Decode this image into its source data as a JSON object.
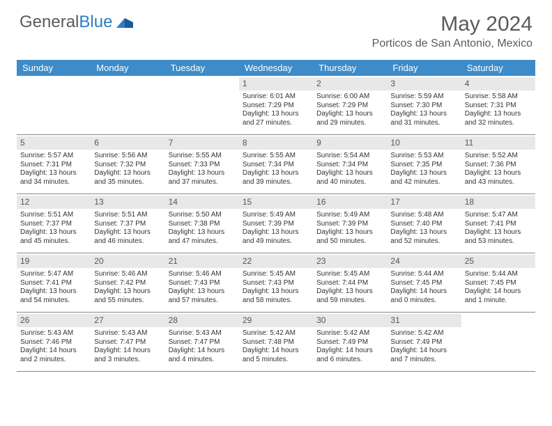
{
  "logo": {
    "part1": "General",
    "part2": "Blue"
  },
  "title": "May 2024",
  "location": "Porticos de San Antonio, Mexico",
  "colors": {
    "header_bg": "#3d8cc9",
    "header_text": "#ffffff",
    "daynum_bg": "#e8e8e8",
    "text": "#333333",
    "title_text": "#5a5a5a"
  },
  "day_headers": [
    "Sunday",
    "Monday",
    "Tuesday",
    "Wednesday",
    "Thursday",
    "Friday",
    "Saturday"
  ],
  "weeks": [
    [
      {
        "empty": true
      },
      {
        "empty": true
      },
      {
        "empty": true
      },
      {
        "num": "1",
        "sunrise": "Sunrise: 6:01 AM",
        "sunset": "Sunset: 7:29 PM",
        "daylight": "Daylight: 13 hours and 27 minutes."
      },
      {
        "num": "2",
        "sunrise": "Sunrise: 6:00 AM",
        "sunset": "Sunset: 7:29 PM",
        "daylight": "Daylight: 13 hours and 29 minutes."
      },
      {
        "num": "3",
        "sunrise": "Sunrise: 5:59 AM",
        "sunset": "Sunset: 7:30 PM",
        "daylight": "Daylight: 13 hours and 31 minutes."
      },
      {
        "num": "4",
        "sunrise": "Sunrise: 5:58 AM",
        "sunset": "Sunset: 7:31 PM",
        "daylight": "Daylight: 13 hours and 32 minutes."
      }
    ],
    [
      {
        "num": "5",
        "sunrise": "Sunrise: 5:57 AM",
        "sunset": "Sunset: 7:31 PM",
        "daylight": "Daylight: 13 hours and 34 minutes."
      },
      {
        "num": "6",
        "sunrise": "Sunrise: 5:56 AM",
        "sunset": "Sunset: 7:32 PM",
        "daylight": "Daylight: 13 hours and 35 minutes."
      },
      {
        "num": "7",
        "sunrise": "Sunrise: 5:55 AM",
        "sunset": "Sunset: 7:33 PM",
        "daylight": "Daylight: 13 hours and 37 minutes."
      },
      {
        "num": "8",
        "sunrise": "Sunrise: 5:55 AM",
        "sunset": "Sunset: 7:34 PM",
        "daylight": "Daylight: 13 hours and 39 minutes."
      },
      {
        "num": "9",
        "sunrise": "Sunrise: 5:54 AM",
        "sunset": "Sunset: 7:34 PM",
        "daylight": "Daylight: 13 hours and 40 minutes."
      },
      {
        "num": "10",
        "sunrise": "Sunrise: 5:53 AM",
        "sunset": "Sunset: 7:35 PM",
        "daylight": "Daylight: 13 hours and 42 minutes."
      },
      {
        "num": "11",
        "sunrise": "Sunrise: 5:52 AM",
        "sunset": "Sunset: 7:36 PM",
        "daylight": "Daylight: 13 hours and 43 minutes."
      }
    ],
    [
      {
        "num": "12",
        "sunrise": "Sunrise: 5:51 AM",
        "sunset": "Sunset: 7:37 PM",
        "daylight": "Daylight: 13 hours and 45 minutes."
      },
      {
        "num": "13",
        "sunrise": "Sunrise: 5:51 AM",
        "sunset": "Sunset: 7:37 PM",
        "daylight": "Daylight: 13 hours and 46 minutes."
      },
      {
        "num": "14",
        "sunrise": "Sunrise: 5:50 AM",
        "sunset": "Sunset: 7:38 PM",
        "daylight": "Daylight: 13 hours and 47 minutes."
      },
      {
        "num": "15",
        "sunrise": "Sunrise: 5:49 AM",
        "sunset": "Sunset: 7:39 PM",
        "daylight": "Daylight: 13 hours and 49 minutes."
      },
      {
        "num": "16",
        "sunrise": "Sunrise: 5:49 AM",
        "sunset": "Sunset: 7:39 PM",
        "daylight": "Daylight: 13 hours and 50 minutes."
      },
      {
        "num": "17",
        "sunrise": "Sunrise: 5:48 AM",
        "sunset": "Sunset: 7:40 PM",
        "daylight": "Daylight: 13 hours and 52 minutes."
      },
      {
        "num": "18",
        "sunrise": "Sunrise: 5:47 AM",
        "sunset": "Sunset: 7:41 PM",
        "daylight": "Daylight: 13 hours and 53 minutes."
      }
    ],
    [
      {
        "num": "19",
        "sunrise": "Sunrise: 5:47 AM",
        "sunset": "Sunset: 7:41 PM",
        "daylight": "Daylight: 13 hours and 54 minutes."
      },
      {
        "num": "20",
        "sunrise": "Sunrise: 5:46 AM",
        "sunset": "Sunset: 7:42 PM",
        "daylight": "Daylight: 13 hours and 55 minutes."
      },
      {
        "num": "21",
        "sunrise": "Sunrise: 5:46 AM",
        "sunset": "Sunset: 7:43 PM",
        "daylight": "Daylight: 13 hours and 57 minutes."
      },
      {
        "num": "22",
        "sunrise": "Sunrise: 5:45 AM",
        "sunset": "Sunset: 7:43 PM",
        "daylight": "Daylight: 13 hours and 58 minutes."
      },
      {
        "num": "23",
        "sunrise": "Sunrise: 5:45 AM",
        "sunset": "Sunset: 7:44 PM",
        "daylight": "Daylight: 13 hours and 59 minutes."
      },
      {
        "num": "24",
        "sunrise": "Sunrise: 5:44 AM",
        "sunset": "Sunset: 7:45 PM",
        "daylight": "Daylight: 14 hours and 0 minutes."
      },
      {
        "num": "25",
        "sunrise": "Sunrise: 5:44 AM",
        "sunset": "Sunset: 7:45 PM",
        "daylight": "Daylight: 14 hours and 1 minute."
      }
    ],
    [
      {
        "num": "26",
        "sunrise": "Sunrise: 5:43 AM",
        "sunset": "Sunset: 7:46 PM",
        "daylight": "Daylight: 14 hours and 2 minutes."
      },
      {
        "num": "27",
        "sunrise": "Sunrise: 5:43 AM",
        "sunset": "Sunset: 7:47 PM",
        "daylight": "Daylight: 14 hours and 3 minutes."
      },
      {
        "num": "28",
        "sunrise": "Sunrise: 5:43 AM",
        "sunset": "Sunset: 7:47 PM",
        "daylight": "Daylight: 14 hours and 4 minutes."
      },
      {
        "num": "29",
        "sunrise": "Sunrise: 5:42 AM",
        "sunset": "Sunset: 7:48 PM",
        "daylight": "Daylight: 14 hours and 5 minutes."
      },
      {
        "num": "30",
        "sunrise": "Sunrise: 5:42 AM",
        "sunset": "Sunset: 7:49 PM",
        "daylight": "Daylight: 14 hours and 6 minutes."
      },
      {
        "num": "31",
        "sunrise": "Sunrise: 5:42 AM",
        "sunset": "Sunset: 7:49 PM",
        "daylight": "Daylight: 14 hours and 7 minutes."
      },
      {
        "empty": true
      }
    ]
  ]
}
